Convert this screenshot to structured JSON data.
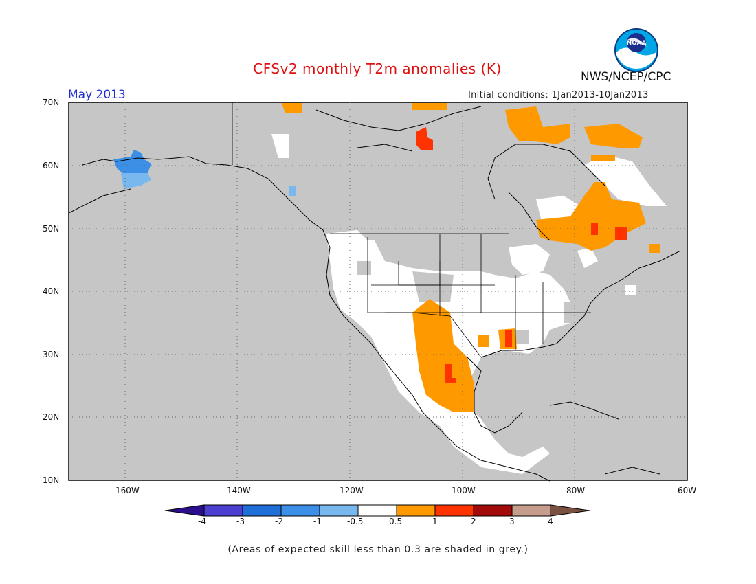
{
  "header": {
    "title": "CFSv2 monthly T2m anomalies (K)",
    "agency": "NWS/NCEP/CPC",
    "logo_text": "NOAA",
    "month": "May 2013",
    "initial_conditions": "Initial conditions: 1Jan2013-10Jan2013"
  },
  "map": {
    "lat_labels": [
      "70N",
      "60N",
      "50N",
      "40N",
      "30N",
      "20N",
      "10N"
    ],
    "lon_labels": [
      "160W",
      "140W",
      "120W",
      "100W",
      "80W",
      "60W"
    ],
    "background_color": "#c6c6c6",
    "coast_color": "#000000"
  },
  "colorbar": {
    "labels": [
      "-4",
      "-3",
      "-2",
      "-1",
      "-0.5",
      "0.5",
      "1",
      "2",
      "3",
      "4"
    ],
    "colors": [
      "#2a0e8c",
      "#4a3fd0",
      "#1f6fd8",
      "#3b8fe6",
      "#78b8ee",
      "#ffffff",
      "#ff9900",
      "#ff3300",
      "#a30a0a",
      "#c69c8c",
      "#7a5040"
    ]
  },
  "footnote": "(Areas of expected skill less than 0.3 are shaded in grey.)"
}
